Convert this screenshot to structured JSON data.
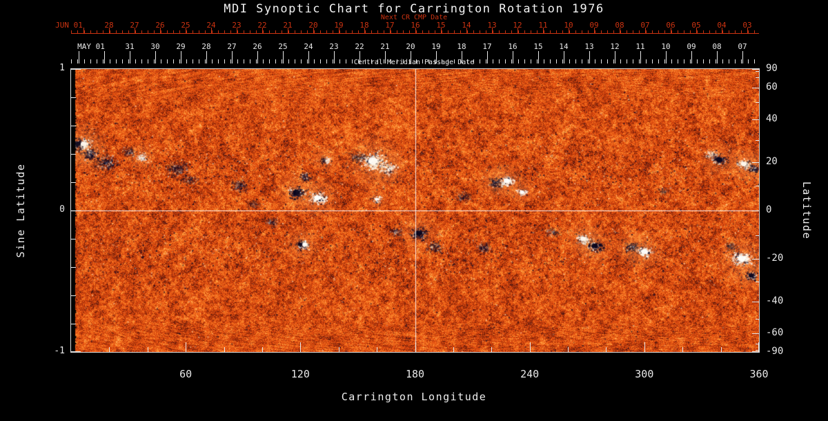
{
  "title": "MDI Synoptic Chart for Carrington Rotation 1976",
  "colors": {
    "background": "#000000",
    "axis_foreground": "#e8e8e8",
    "date_axis_red": "#cc3311",
    "map_base_orange": "#e1490f",
    "negative_polarity": "#0a0624",
    "positive_polarity": "#fffaee"
  },
  "top_axis_red": {
    "label": "Next CR CMP Date",
    "first_label": "JUN 01",
    "day_labels": [
      "28",
      "27",
      "26",
      "25",
      "24",
      "23",
      "22",
      "21",
      "20",
      "19",
      "18",
      "17",
      "16",
      "15",
      "14",
      "13",
      "12",
      "11",
      "10",
      "09",
      "08",
      "07",
      "06",
      "05",
      "04",
      "03"
    ]
  },
  "top_axis_white": {
    "first_label": "MAY 01",
    "day_labels": [
      "31",
      "30",
      "29",
      "28",
      "27",
      "26",
      "25",
      "24",
      "23",
      "22",
      "21",
      "20",
      "19",
      "18",
      "17",
      "16",
      "15",
      "14",
      "13",
      "12",
      "11",
      "10",
      "09",
      "08",
      "07"
    ],
    "sublabel": "Central Meridian Passage Date"
  },
  "x_axis": {
    "label": "Carrington Longitude",
    "ticks": [
      60,
      120,
      180,
      240,
      300,
      360
    ],
    "minor_step": 20,
    "range": [
      0,
      360
    ]
  },
  "y_axis_left": {
    "label": "Sine Latitude",
    "ticks": [
      "1",
      "0",
      "-1"
    ],
    "minor_ticks": [
      0.8,
      0.6,
      0.4,
      0.2,
      -0.2,
      -0.4,
      -0.6,
      -0.8
    ],
    "range": [
      -1,
      1
    ]
  },
  "y_axis_right": {
    "label": "Latitude",
    "ticks": [
      90,
      60,
      40,
      20,
      0,
      -20,
      -40,
      -60,
      -90
    ],
    "minor_ticks": [
      80,
      70,
      50,
      30,
      10,
      -10,
      -30,
      -50,
      -70,
      -80
    ]
  },
  "chart_data": {
    "type": "heatmap",
    "title": "MDI Synoptic Chart for Carrington Rotation 1976",
    "description": "Full-rotation solar magnetogram synoptic map: mottled orange quiet-Sun field with dark (negative polarity) and white (positive polarity) active regions concentrated in two activity bands near +/-20 degrees latitude; white crosshair lines mark longitude 180 and sine latitude 0; narrow black data-gap strip at longitude 0.",
    "x_label": "Carrington Longitude",
    "x_range": [
      0,
      360
    ],
    "y_label_left": "Sine Latitude",
    "y_range_sine_latitude": [
      -1,
      1
    ],
    "y_label_right": "Latitude",
    "crosshair": {
      "longitude": 180,
      "sine_latitude": 0
    },
    "active_regions": [
      {
        "lon": 5,
        "sine_lat": 0.47,
        "size": 15,
        "polarity": "mixed",
        "strength": 0.95
      },
      {
        "lon": 10,
        "sine_lat": 0.4,
        "size": 12,
        "polarity": "neg",
        "strength": 0.7
      },
      {
        "lon": 18,
        "sine_lat": 0.34,
        "size": 16,
        "polarity": "neg",
        "strength": 0.6
      },
      {
        "lon": 30,
        "sine_lat": 0.42,
        "size": 10,
        "polarity": "neg",
        "strength": 0.5
      },
      {
        "lon": 37,
        "sine_lat": 0.38,
        "size": 9,
        "polarity": "pos",
        "strength": 0.7
      },
      {
        "lon": 55,
        "sine_lat": 0.3,
        "size": 16,
        "polarity": "neg",
        "strength": 0.45
      },
      {
        "lon": 62,
        "sine_lat": 0.22,
        "size": 12,
        "polarity": "neg",
        "strength": 0.4
      },
      {
        "lon": 88,
        "sine_lat": 0.18,
        "size": 14,
        "polarity": "neg",
        "strength": 0.45
      },
      {
        "lon": 95,
        "sine_lat": 0.05,
        "size": 10,
        "polarity": "neg",
        "strength": 0.35
      },
      {
        "lon": 105,
        "sine_lat": -0.08,
        "size": 10,
        "polarity": "neg",
        "strength": 0.4
      },
      {
        "lon": 118,
        "sine_lat": 0.13,
        "size": 13,
        "polarity": "neg",
        "strength": 0.9
      },
      {
        "lon": 129,
        "sine_lat": 0.09,
        "size": 13,
        "polarity": "pos",
        "strength": 1.0
      },
      {
        "lon": 122,
        "sine_lat": 0.24,
        "size": 10,
        "polarity": "neg",
        "strength": 0.6
      },
      {
        "lon": 133,
        "sine_lat": 0.36,
        "size": 9,
        "polarity": "mixed",
        "strength": 0.7
      },
      {
        "lon": 121,
        "sine_lat": -0.24,
        "size": 11,
        "polarity": "mixed",
        "strength": 0.85
      },
      {
        "lon": 150,
        "sine_lat": 0.38,
        "size": 11,
        "polarity": "neg",
        "strength": 0.55
      },
      {
        "lon": 158,
        "sine_lat": 0.35,
        "size": 18,
        "polarity": "pos",
        "strength": 0.95
      },
      {
        "lon": 166,
        "sine_lat": 0.3,
        "size": 12,
        "polarity": "pos",
        "strength": 0.7
      },
      {
        "lon": 160,
        "sine_lat": 0.08,
        "size": 7,
        "polarity": "pos",
        "strength": 0.8
      },
      {
        "lon": 170,
        "sine_lat": -0.15,
        "size": 10,
        "polarity": "neg",
        "strength": 0.4
      },
      {
        "lon": 182,
        "sine_lat": -0.16,
        "size": 13,
        "polarity": "neg",
        "strength": 0.8
      },
      {
        "lon": 190,
        "sine_lat": -0.26,
        "size": 12,
        "polarity": "neg",
        "strength": 0.5
      },
      {
        "lon": 205,
        "sine_lat": 0.1,
        "size": 12,
        "polarity": "neg",
        "strength": 0.4
      },
      {
        "lon": 216,
        "sine_lat": -0.26,
        "size": 12,
        "polarity": "neg",
        "strength": 0.45
      },
      {
        "lon": 222,
        "sine_lat": 0.2,
        "size": 11,
        "polarity": "neg",
        "strength": 0.75
      },
      {
        "lon": 228,
        "sine_lat": 0.21,
        "size": 11,
        "polarity": "pos",
        "strength": 0.95
      },
      {
        "lon": 236,
        "sine_lat": 0.13,
        "size": 8,
        "polarity": "pos",
        "strength": 0.8
      },
      {
        "lon": 252,
        "sine_lat": -0.15,
        "size": 10,
        "polarity": "neg",
        "strength": 0.4
      },
      {
        "lon": 268,
        "sine_lat": -0.2,
        "size": 11,
        "polarity": "pos",
        "strength": 0.85
      },
      {
        "lon": 274,
        "sine_lat": -0.25,
        "size": 12,
        "polarity": "neg",
        "strength": 0.8
      },
      {
        "lon": 293,
        "sine_lat": -0.26,
        "size": 11,
        "polarity": "neg",
        "strength": 0.7
      },
      {
        "lon": 300,
        "sine_lat": -0.29,
        "size": 12,
        "polarity": "pos",
        "strength": 0.95
      },
      {
        "lon": 310,
        "sine_lat": 0.14,
        "size": 9,
        "polarity": "neg",
        "strength": 0.35
      },
      {
        "lon": 335,
        "sine_lat": 0.4,
        "size": 9,
        "polarity": "pos",
        "strength": 0.6
      },
      {
        "lon": 339,
        "sine_lat": 0.36,
        "size": 12,
        "polarity": "neg",
        "strength": 0.8
      },
      {
        "lon": 352,
        "sine_lat": 0.33,
        "size": 11,
        "polarity": "pos",
        "strength": 0.85
      },
      {
        "lon": 357,
        "sine_lat": 0.3,
        "size": 10,
        "polarity": "neg",
        "strength": 0.7
      },
      {
        "lon": 345,
        "sine_lat": -0.25,
        "size": 9,
        "polarity": "neg",
        "strength": 0.5
      },
      {
        "lon": 351,
        "sine_lat": -0.34,
        "size": 15,
        "polarity": "pos",
        "strength": 1.0
      },
      {
        "lon": 356,
        "sine_lat": -0.46,
        "size": 10,
        "polarity": "neg",
        "strength": 0.8
      }
    ]
  }
}
